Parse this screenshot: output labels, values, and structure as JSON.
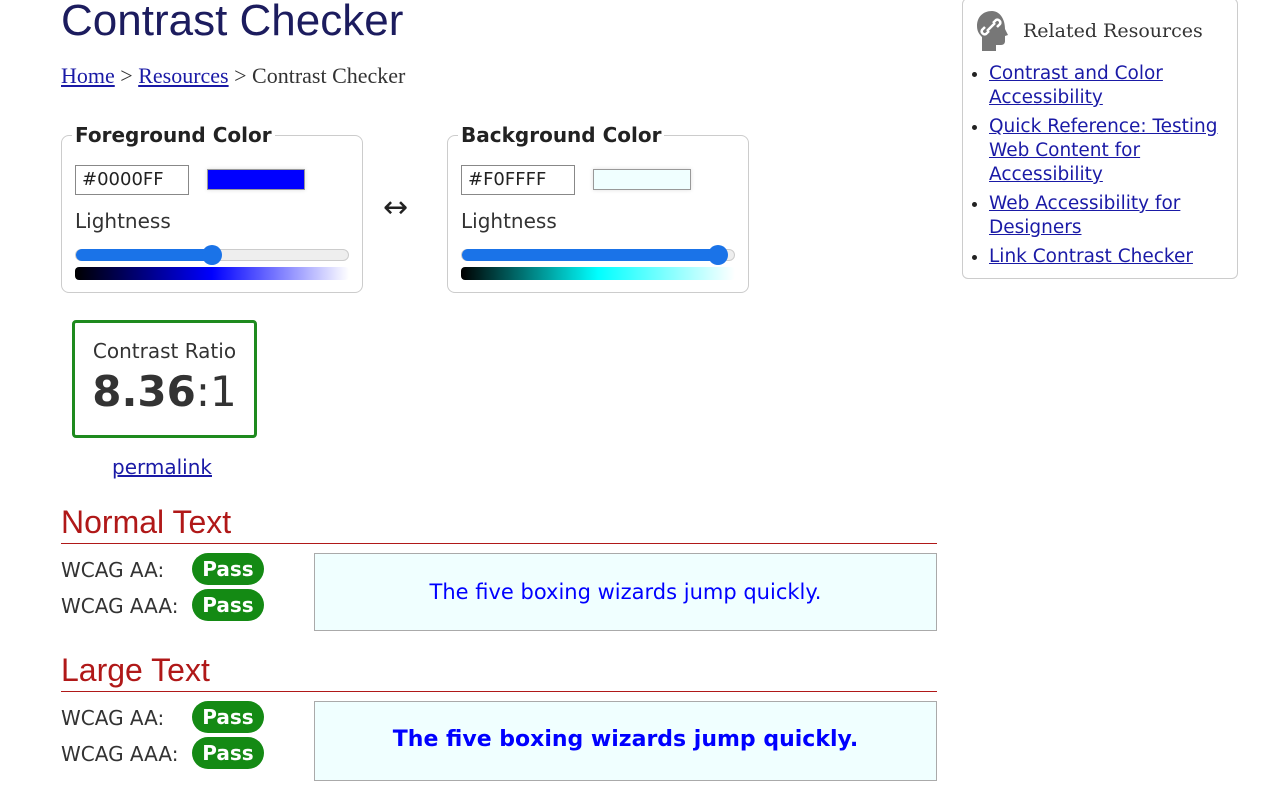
{
  "page": {
    "title": "Contrast Checker"
  },
  "breadcrumb": {
    "home": "Home",
    "sep": ">",
    "resources": "Resources",
    "current": "Contrast Checker"
  },
  "foreground": {
    "legend": "Foreground Color",
    "hex": "#0000FF",
    "color": "#0000FF",
    "lightness_label": "Lightness",
    "lightness_pct": 50
  },
  "background": {
    "legend": "Background Color",
    "hex": "#F0FFFF",
    "color": "#F0FFFF",
    "lightness_label": "Lightness",
    "lightness_pct": 97
  },
  "swap_icon": "↔",
  "ratio": {
    "label": "Contrast Ratio",
    "value": "8.36",
    "suffix": ":1",
    "border_color": "#1e8a1e"
  },
  "permalink": "permalink",
  "normal": {
    "heading": "Normal Text",
    "aa_label": "WCAG AA:",
    "aa": "Pass",
    "aaa_label": "WCAG AAA:",
    "aaa": "Pass",
    "sample": "The five boxing wizards jump quickly."
  },
  "large": {
    "heading": "Large Text",
    "aa_label": "WCAG AA:",
    "aa": "Pass",
    "aaa_label": "WCAG AAA:",
    "aaa": "Pass",
    "sample": "The five boxing wizards jump quickly."
  },
  "sidebar": {
    "heading": "Related Resources",
    "icon": "link-head-icon",
    "links": [
      "Contrast and Color Accessibility",
      "Quick Reference: Testing Web Content for Accessibility",
      "Web Accessibility for Designers",
      "Link Contrast Checker"
    ]
  }
}
